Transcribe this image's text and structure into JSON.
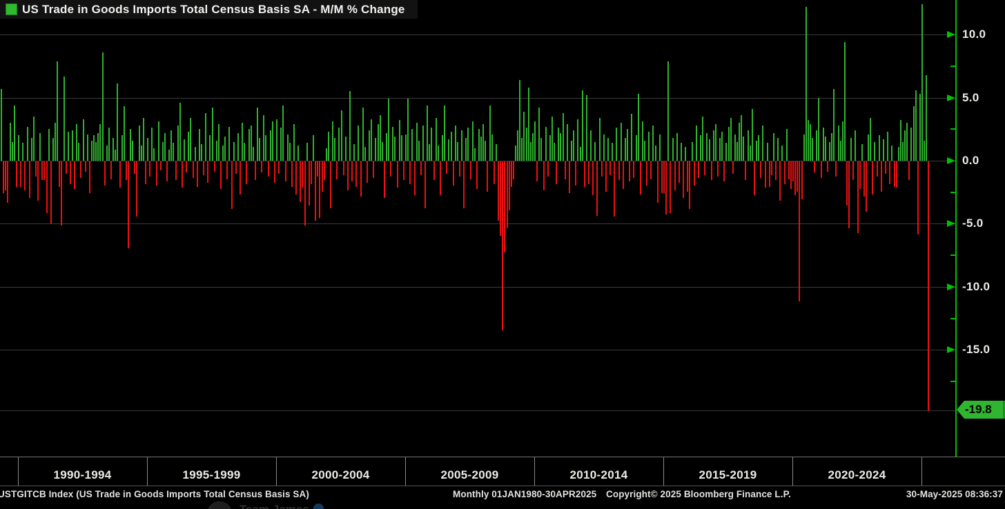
{
  "title": {
    "legend_label": "US Trade in Goods Imports Total Census Basis SA - M/M % Change"
  },
  "colors": {
    "positive_bar": "#2fb52f",
    "negative_bar": "#ee1111",
    "axis_green": "#00c300",
    "last_tag_green": "#2fb52f",
    "background": "#000000",
    "gridline": "#3c3c3c",
    "text": "#ebebe6"
  },
  "y_axis": {
    "major_ticks": [
      {
        "value": 10.0,
        "label": "10.0"
      },
      {
        "value": 5.0,
        "label": "5.0"
      },
      {
        "value": 0.0,
        "label": "0.0"
      },
      {
        "value": -5.0,
        "label": "-5.0"
      },
      {
        "value": -10.0,
        "label": "-10.0"
      },
      {
        "value": -15.0,
        "label": "-15.0"
      }
    ],
    "minor_tick_values": [
      7.5,
      2.5,
      -2.5,
      -7.5,
      -12.5,
      -17.5
    ],
    "last_value": -19.8,
    "last_value_label": "-19.8"
  },
  "x_axis": {
    "labels": [
      "1990-1994",
      "1995-1999",
      "2000-2004",
      "2005-2009",
      "2010-2014",
      "2015-2019",
      "2020-2024"
    ]
  },
  "status_bar": {
    "ticker": "USTGITCB Index (US Trade in Goods Imports Total Census Basis SA)",
    "range": "Monthly 01JAN1980-30APR2025",
    "copyright": "Copyright© 2025 Bloomberg Finance L.P.",
    "datetime": "30-May-2025 08:36:37"
  },
  "attribution_overlay": {
    "name": "Team James"
  },
  "chart_data": {
    "type": "bar",
    "title": "US Trade in Goods Imports Total Census Basis SA - M/M % Change",
    "ylabel": "M/M % Change",
    "unit": "%",
    "frequency": "Monthly",
    "visible_start": "1989-01",
    "visible_end": "2025-04",
    "ylim": [
      -23.5,
      12.75
    ],
    "y_tick_values": [
      10.0,
      5.0,
      0.0,
      -5.0,
      -10.0,
      -15.0
    ],
    "x_group_labels": [
      "1990-1994",
      "1995-1999",
      "2000-2004",
      "2005-2009",
      "2010-2014",
      "2015-2019",
      "2020-2024"
    ],
    "grid": true,
    "legend_position": "top-left",
    "last_value": -19.8,
    "series": [
      {
        "name": "US Trade in Goods Imports Total Census Basis SA - M/M % Change",
        "values": [
          1.2,
          0.8,
          2.1,
          -1.0,
          5.7,
          -2.5,
          -2.3,
          -3.3,
          3.0,
          1.5,
          4.4,
          -2.0,
          2.0,
          -2.0,
          1.4,
          -2.3,
          2.7,
          -2.9,
          1.8,
          3.5,
          -1.2,
          -3.1,
          2.2,
          -1.5,
          -1.5,
          -4.1,
          2.5,
          -4.9,
          1.8,
          3.0,
          7.9,
          -2.0,
          -5.1,
          6.7,
          -1.0,
          2.3,
          -1.8,
          2.4,
          -2.2,
          2.9,
          1.4,
          -1.3,
          3.3,
          -0.8,
          2.1,
          -2.5,
          1.6,
          2.0,
          1.5,
          2.2,
          2.9,
          8.6,
          -1.9,
          1.2,
          2.6,
          -1.4,
          1.8,
          0.9,
          6.1,
          -2.1,
          2.0,
          4.3,
          -1.5,
          -6.9,
          2.5,
          1.6,
          -1.0,
          -4.4,
          2.8,
          1.2,
          3.4,
          -1.8,
          1.8,
          -1.2,
          2.6,
          1.0,
          -1.9,
          3.1,
          -0.7,
          1.5,
          2.2,
          -1.6,
          0.9,
          2.4,
          1.4,
          -1.5,
          2.8,
          4.6,
          -2.1,
          1.7,
          -0.9,
          2.3,
          3.4,
          -1.3,
          1.1,
          -2.0,
          2.5,
          1.3,
          -1.1,
          3.8,
          -1.7,
          2.0,
          4.2,
          -0.8,
          1.6,
          2.9,
          -2.2,
          1.2,
          1.9,
          -1.4,
          2.7,
          -3.8,
          1.5,
          -1.0,
          2.2,
          -2.6,
          3.0,
          1.4,
          -1.8,
          2.5,
          2.8,
          1.1,
          -1.5,
          4.2,
          1.8,
          -0.9,
          3.6,
          2.0,
          -1.2,
          2.4,
          3.1,
          -1.7,
          3.3,
          -1.0,
          2.6,
          4.4,
          -1.6,
          2.1,
          1.4,
          -2.0,
          2.9,
          -2.6,
          1.2,
          -3.2,
          -2.1,
          -5.1,
          1.4,
          -3.5,
          -1.8,
          2.0,
          -4.7,
          -1.2,
          -4.5,
          -2.4,
          -1.5,
          1.0,
          2.3,
          -3.7,
          3.1,
          1.8,
          -1.4,
          2.6,
          4.0,
          -1.1,
          1.9,
          -2.3,
          5.5,
          -1.6,
          1.3,
          -2.0,
          2.8,
          -2.8,
          4.2,
          1.1,
          -1.7,
          2.4,
          3.3,
          -1.3,
          1.8,
          2.9,
          3.6,
          1.5,
          -2.9,
          2.2,
          4.9,
          -1.2,
          2.7,
          1.9,
          -2.1,
          3.2,
          2.0,
          -1.5,
          2.1,
          4.9,
          -1.8,
          2.5,
          -2.7,
          3.0,
          1.6,
          -1.1,
          2.8,
          -3.7,
          4.4,
          1.3,
          2.6,
          -1.5,
          3.4,
          1.2,
          -2.7,
          2.0,
          4.4,
          -1.0,
          1.7,
          2.3,
          -1.9,
          2.8,
          1.5,
          -1.2,
          2.4,
          -3.7,
          1.8,
          2.6,
          -1.4,
          3.1,
          1.0,
          -2.2,
          2.5,
          1.9,
          2.9,
          1.6,
          -2.4,
          4.4,
          2.1,
          -1.8,
          1.3,
          -4.7,
          -5.9,
          -13.4,
          -7.2,
          -5.3,
          -3.9,
          -2.0,
          -1.4,
          1.2,
          2.4,
          6.4,
          1.8,
          3.9,
          2.6,
          5.8,
          1.5,
          2.2,
          3.1,
          -1.6,
          4.2,
          1.8,
          -2.3,
          2.7,
          -1.2,
          2.0,
          3.5,
          1.4,
          -1.8,
          2.6,
          2.2,
          3.8,
          -1.4,
          2.9,
          -2.5,
          1.6,
          2.4,
          -1.9,
          3.3,
          1.1,
          5.6,
          -2.0,
          5.2,
          -1.8,
          2.4,
          -2.7,
          1.5,
          -4.3,
          3.4,
          -1.2,
          2.1,
          -2.4,
          1.8,
          -1.1,
          1.4,
          -4.4,
          2.6,
          -1.5,
          3.0,
          -2.2,
          1.8,
          2.5,
          -1.6,
          3.7,
          -1.3,
          2.0,
          5.3,
          -2.6,
          3.1,
          1.6,
          -1.9,
          2.3,
          -1.4,
          2.8,
          1.2,
          -3.3,
          2.1,
          -2.5,
          -2.5,
          -4.2,
          7.9,
          -4.1,
          1.8,
          -2.3,
          2.2,
          -1.7,
          1.4,
          -2.9,
          1.1,
          -2.4,
          -3.8,
          1.5,
          -1.9,
          2.8,
          -1.3,
          2.0,
          3.5,
          -1.1,
          2.2,
          1.7,
          -1.5,
          2.4,
          2.9,
          -1.2,
          1.8,
          2.3,
          -1.6,
          1.4,
          2.7,
          3.4,
          -1.0,
          2.1,
          1.5,
          3.0,
          3.6,
          1.9,
          -1.5,
          2.4,
          1.2,
          4.1,
          -2.7,
          1.6,
          2.0,
          -1.3,
          2.8,
          -2.1,
          1.4,
          -2.0,
          -1.1,
          2.2,
          -1.5,
          1.8,
          -3.1,
          1.2,
          -1.8,
          2.5,
          -1.4,
          -2.2,
          -1.6,
          -2.7,
          -2.4,
          -11.1,
          -3.0,
          2.1,
          12.2,
          3.2,
          2.9,
          1.8,
          -0.9,
          2.4,
          5.0,
          -1.3,
          2.6,
          1.9,
          -0.8,
          1.5,
          2.2,
          5.7,
          -1.2,
          2.8,
          1.6,
          3.1,
          9.4,
          -3.5,
          -5.3,
          1.8,
          -1.5,
          2.4,
          -5.7,
          -2.2,
          1.3,
          -2.8,
          -4.0,
          2.1,
          3.4,
          -2.6,
          1.5,
          -1.2,
          2.0,
          -2.4,
          1.7,
          -1.0,
          2.3,
          -1.8,
          1.2,
          -2.0,
          -2.1,
          1.1,
          3.2,
          1.5,
          2.4,
          3.0,
          -1.5,
          2.6,
          4.3,
          5.6,
          -5.8,
          5.3,
          12.4,
          1.6,
          6.8,
          -19.8
        ]
      }
    ]
  }
}
